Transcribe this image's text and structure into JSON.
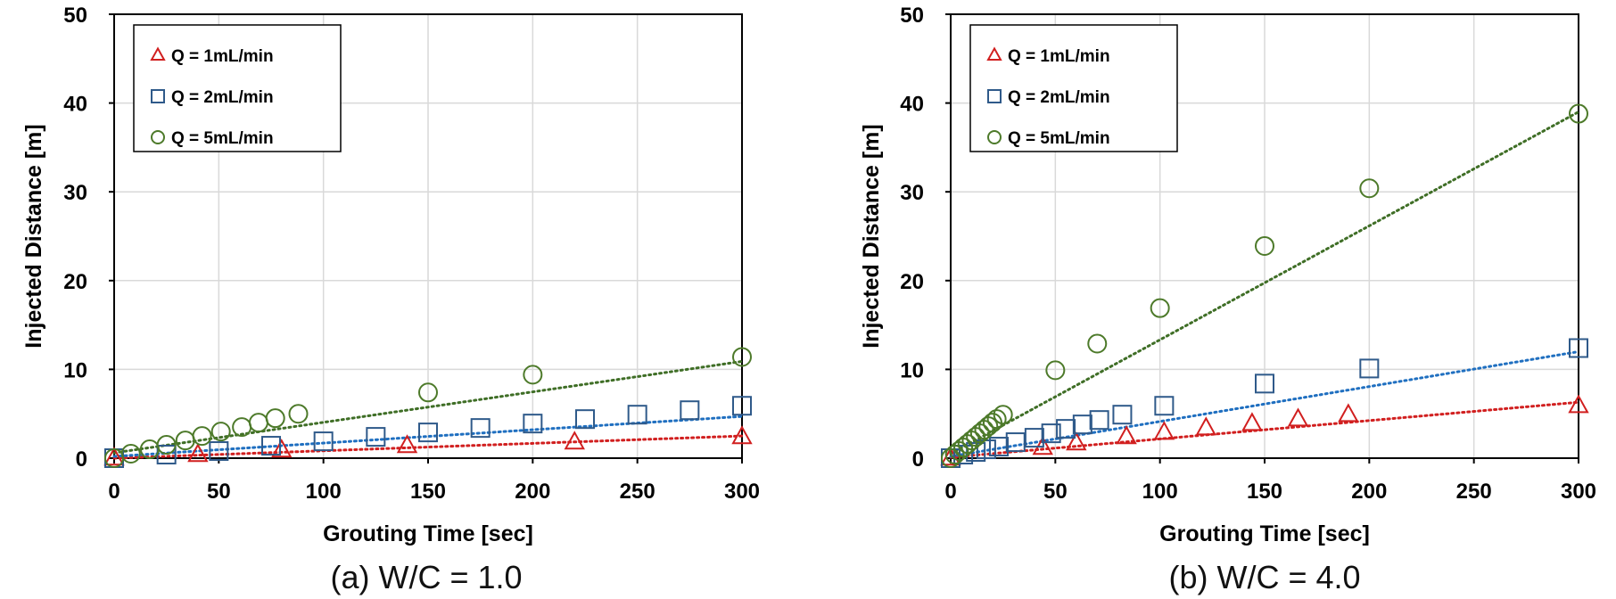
{
  "colors": {
    "q1": "#d11f1f",
    "q2": "#2f5a8a",
    "q5": "#4d7a2a",
    "trend_q1": "#d11f1f",
    "trend_q2": "#1f6fc0",
    "trend_q5": "#3f6e26",
    "grid": "#d9d9d9"
  },
  "chart_data": [
    {
      "type": "scatter",
      "caption": "(a) W/C = 1.0",
      "xlabel": "Grouting Time [sec]",
      "ylabel": "Injected Distance [m]",
      "xlim": [
        0,
        300
      ],
      "ylim": [
        0,
        50
      ],
      "xticks": [
        0,
        50,
        100,
        150,
        200,
        250,
        300
      ],
      "yticks": [
        0,
        10,
        20,
        30,
        40,
        50
      ],
      "grid": true,
      "legend_position": "top-left",
      "series": [
        {
          "name": "Q = 1mL/min",
          "marker": "triangle",
          "x": [
            0,
            40,
            80,
            140,
            220,
            300
          ],
          "y": [
            0,
            0.4,
            0.9,
            1.4,
            1.8,
            2.4
          ],
          "trend": [
            0,
            2.5
          ]
        },
        {
          "name": "Q = 2mL/min",
          "marker": "square",
          "x": [
            0,
            25,
            50,
            75,
            100,
            125,
            150,
            175,
            200,
            225,
            250,
            275,
            300
          ],
          "y": [
            0,
            0.4,
            0.8,
            1.4,
            1.9,
            2.4,
            2.9,
            3.4,
            3.9,
            4.4,
            4.9,
            5.4,
            5.9
          ],
          "trend": [
            0.2,
            4.7
          ]
        },
        {
          "name": "Q = 5mL/min",
          "marker": "circle",
          "x": [
            0,
            8,
            17,
            25,
            34,
            42,
            51,
            61,
            69,
            77,
            88,
            150,
            200,
            300
          ],
          "y": [
            0,
            0.5,
            1,
            1.5,
            2,
            2.5,
            3,
            3.5,
            4,
            4.5,
            5,
            7.4,
            9.4,
            11.4
          ],
          "trend": [
            0.6,
            10.9
          ]
        }
      ]
    },
    {
      "type": "scatter",
      "caption": "(b) W/C = 4.0",
      "xlabel": "Grouting Time [sec]",
      "ylabel": "Injected Distance [m]",
      "xlim": [
        0,
        300
      ],
      "ylim": [
        0,
        50
      ],
      "xticks": [
        0,
        50,
        100,
        150,
        200,
        250,
        300
      ],
      "yticks": [
        0,
        10,
        20,
        30,
        40,
        50
      ],
      "grid": true,
      "legend_position": "top-left",
      "series": [
        {
          "name": "Q = 1mL/min",
          "marker": "triangle",
          "x": [
            0,
            44,
            60,
            84,
            102,
            122,
            144,
            166,
            190,
            300
          ],
          "y": [
            0,
            1.2,
            1.7,
            2.4,
            2.9,
            3.4,
            3.9,
            4.4,
            4.9,
            5.9
          ],
          "trend": [
            0.1,
            6.3
          ]
        },
        {
          "name": "Q = 2mL/min",
          "marker": "square",
          "x": [
            0,
            6,
            12,
            17,
            23,
            31,
            40,
            48,
            55,
            63,
            71,
            82,
            102,
            150,
            200,
            300
          ],
          "y": [
            0,
            0.4,
            0.7,
            1,
            1.3,
            1.8,
            2.3,
            2.8,
            3.3,
            3.8,
            4.3,
            4.9,
            5.9,
            8.4,
            10.1,
            12.4
          ],
          "trend": [
            0.2,
            12
          ]
        },
        {
          "name": "Q = 5mL/min",
          "marker": "circle",
          "x": [
            0,
            2,
            4,
            6,
            8,
            10,
            12,
            14,
            16,
            18,
            20,
            22,
            25,
            50,
            70,
            100,
            150,
            200,
            300
          ],
          "y": [
            0,
            0.4,
            0.8,
            1.2,
            1.6,
            2,
            2.4,
            2.8,
            3.2,
            3.6,
            4,
            4.4,
            4.9,
            9.9,
            12.9,
            16.9,
            23.9,
            30.4,
            38.8
          ],
          "trend": [
            0.5,
            39
          ]
        }
      ]
    }
  ]
}
